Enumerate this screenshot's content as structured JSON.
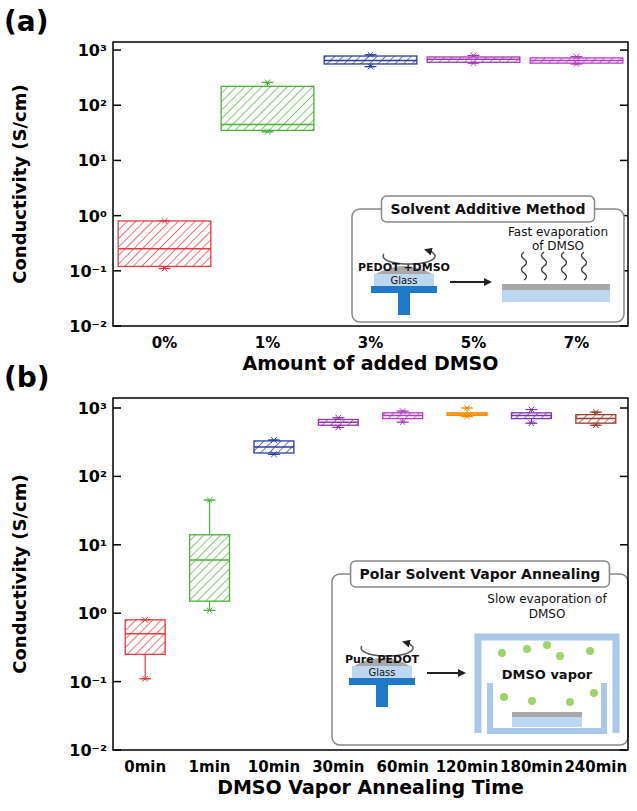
{
  "chart_data": [
    {
      "type": "box",
      "title": "(a)",
      "x_label": "Amount of added DMSO",
      "y_label": "Conductivity (S/cm)",
      "categories": [
        "0%",
        "1%",
        "3%",
        "5%",
        "7%"
      ],
      "min": [
        0.11,
        33,
        500,
        580,
        560
      ],
      "q1": [
        0.12,
        35,
        560,
        600,
        580
      ],
      "median": [
        0.25,
        45,
        650,
        680,
        650
      ],
      "q3": [
        0.8,
        220,
        780,
        750,
        720
      ],
      "max": [
        0.8,
        260,
        820,
        800,
        760
      ],
      "colors": [
        "#e8383d",
        "#4caf3a",
        "#2b3ea0",
        "#a23ab0",
        "#b03cc0"
      ],
      "log": "y",
      "ylim": [
        0.01,
        1400
      ],
      "yticks": [
        {
          "value": 0.01,
          "label": "10⁻²"
        },
        {
          "value": 0.1,
          "label": "10⁻¹"
        },
        {
          "value": 1,
          "label": "10⁰"
        },
        {
          "value": 10,
          "label": "10¹"
        },
        {
          "value": 100,
          "label": "10²"
        },
        {
          "value": 1000,
          "label": "10³"
        }
      ],
      "inset": {
        "title": "Solvent Additive Method",
        "caption": "Fast evaporation of DMSO",
        "film": "PEDOT +DMSO",
        "substrate": "Glass"
      }
    },
    {
      "type": "box",
      "title": "(b)",
      "x_label": "DMSO Vapor Annealing Time",
      "y_label": "Conductivity (S/cm)",
      "categories": [
        "0min",
        "1min",
        "10min",
        "30min",
        "60min",
        "120min",
        "180min",
        "240min"
      ],
      "min": [
        0.11,
        1.1,
        210,
        520,
        620,
        750,
        600,
        560
      ],
      "q1": [
        0.25,
        1.5,
        220,
        560,
        700,
        780,
        700,
        600
      ],
      "median": [
        0.5,
        6,
        270,
        620,
        780,
        820,
        780,
        700
      ],
      "q3": [
        0.8,
        14,
        330,
        680,
        850,
        850,
        850,
        800
      ],
      "max": [
        0.8,
        45,
        340,
        720,
        900,
        1000,
        950,
        870
      ],
      "colors": [
        "#e8383d",
        "#4caf3a",
        "#2b3ea0",
        "#8e3aa8",
        "#b03cc0",
        "#ff8a00",
        "#7a34b0",
        "#9c3b2e"
      ],
      "log": "y",
      "ylim": [
        0.01,
        1400
      ],
      "yticks": [
        {
          "value": 0.01,
          "label": "10⁻²"
        },
        {
          "value": 0.1,
          "label": "10⁻¹"
        },
        {
          "value": 1,
          "label": "10⁰"
        },
        {
          "value": 10,
          "label": "10¹"
        },
        {
          "value": 100,
          "label": "10²"
        },
        {
          "value": 1000,
          "label": "10³"
        }
      ],
      "inset": {
        "title": "Polar Solvent Vapor Annealing",
        "caption": "Slow evaporation of DMSO",
        "film": "Pure PEDOT",
        "substrate": "Glass",
        "vapor": "DMSO vapor"
      }
    }
  ]
}
